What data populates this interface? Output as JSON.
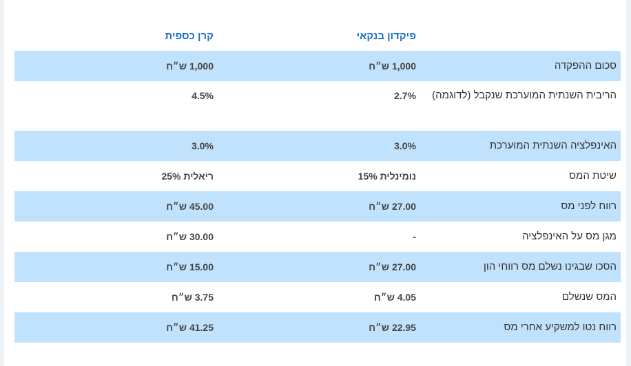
{
  "table": {
    "headers": {
      "label_column": "",
      "bank_deposit": "פיקדון בנקאי",
      "money_fund": "קרן כספית"
    },
    "rows": [
      {
        "label": "סכום ההפקדה",
        "bank": "1,000 ש״ח",
        "fund": "1,000 ש״ח"
      },
      {
        "label": "הריבית השנתית המוערכת שנקבל (לדוגמה)",
        "bank": "2.7%",
        "fund": "4.5%"
      },
      {
        "label": "האינפלציה השנתית המוערכת",
        "bank": "3.0%",
        "fund": "3.0%"
      },
      {
        "label": "שיטת המס",
        "bank": "נומינלית 15%",
        "fund": "ריאלית 25%"
      },
      {
        "label": "רווח לפני מס",
        "bank": "27.00 ש״ח",
        "fund": "45.00 ש״ח"
      },
      {
        "label": "מגן מס על האינפלציה",
        "bank": "-",
        "fund": "30.00 ש״ח"
      },
      {
        "label": "הסכו שבגינו נשלם מס רווחי הון",
        "bank": "27.00 ש״ח",
        "fund": "15.00 ש״ח"
      },
      {
        "label": "המס שנשלם",
        "bank": "4.05 ש״ח",
        "fund": "3.75 ש״ח"
      },
      {
        "label": "רווח נטו למשקיע אחרי מס",
        "bank": "22.95 ש״ח",
        "fund": "41.25 ש״ח"
      }
    ]
  },
  "colors": {
    "header_text": "#1a6fc0",
    "shaded_row": "#c0e2fc",
    "side_strips": "#edf1f5"
  }
}
